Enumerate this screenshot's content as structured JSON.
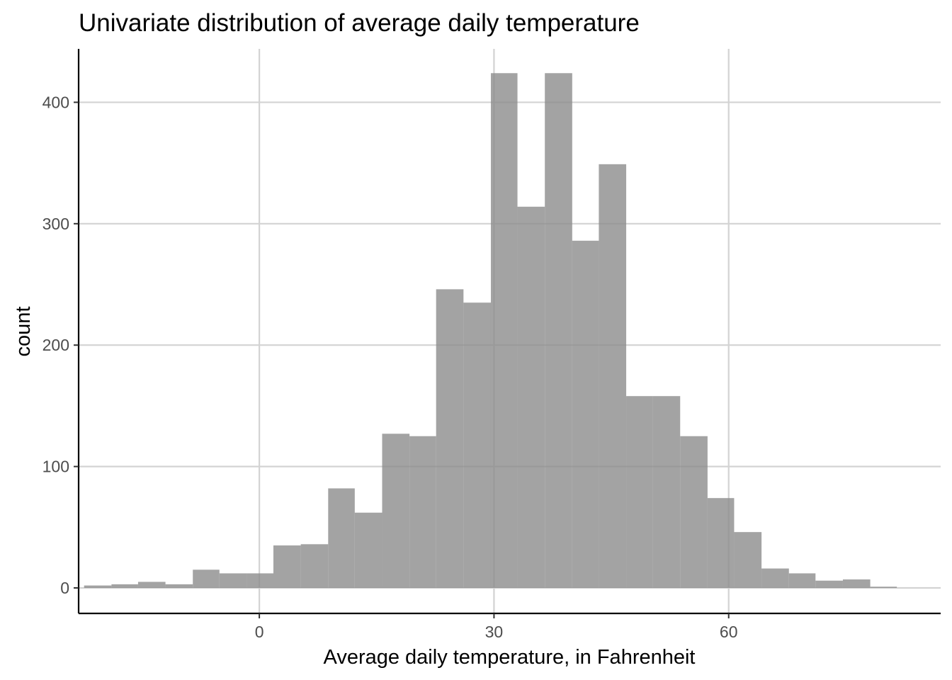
{
  "chart_data": {
    "type": "bar",
    "subtype": "histogram",
    "title": "Univariate distribution of average daily temperature",
    "xlabel": "Average daily temperature, in Fahrenheit",
    "ylabel": "count",
    "xlim": [
      -23.1,
      87.1
    ],
    "ylim": [
      -21,
      444
    ],
    "x_ticks": [
      0,
      30,
      60
    ],
    "y_ticks": [
      0,
      100,
      200,
      300,
      400
    ],
    "grid": true,
    "bar_color": "#a3a3a3",
    "bins": [
      {
        "x0": -22.4,
        "x1": -18.9,
        "count": 2
      },
      {
        "x0": -18.9,
        "x1": -15.5,
        "count": 3
      },
      {
        "x0": -15.5,
        "x1": -12.0,
        "count": 5
      },
      {
        "x0": -12.0,
        "x1": -8.5,
        "count": 3
      },
      {
        "x0": -8.5,
        "x1": -5.1,
        "count": 15
      },
      {
        "x0": -5.1,
        "x1": -1.6,
        "count": 12
      },
      {
        "x0": -1.6,
        "x1": 1.8,
        "count": 12
      },
      {
        "x0": 1.8,
        "x1": 5.3,
        "count": 35
      },
      {
        "x0": 5.3,
        "x1": 8.8,
        "count": 36
      },
      {
        "x0": 8.8,
        "x1": 12.2,
        "count": 82
      },
      {
        "x0": 12.2,
        "x1": 15.7,
        "count": 62
      },
      {
        "x0": 15.7,
        "x1": 19.2,
        "count": 127
      },
      {
        "x0": 19.2,
        "x1": 22.6,
        "count": 125
      },
      {
        "x0": 22.6,
        "x1": 26.1,
        "count": 246
      },
      {
        "x0": 26.1,
        "x1": 29.6,
        "count": 235
      },
      {
        "x0": 29.6,
        "x1": 33.0,
        "count": 424
      },
      {
        "x0": 33.0,
        "x1": 36.5,
        "count": 314
      },
      {
        "x0": 36.5,
        "x1": 40.0,
        "count": 424
      },
      {
        "x0": 40.0,
        "x1": 43.4,
        "count": 286
      },
      {
        "x0": 43.4,
        "x1": 46.9,
        "count": 349
      },
      {
        "x0": 46.9,
        "x1": 50.3,
        "count": 158
      },
      {
        "x0": 50.3,
        "x1": 53.8,
        "count": 158
      },
      {
        "x0": 53.8,
        "x1": 57.3,
        "count": 125
      },
      {
        "x0": 57.3,
        "x1": 60.7,
        "count": 74
      },
      {
        "x0": 60.7,
        "x1": 64.2,
        "count": 46
      },
      {
        "x0": 64.2,
        "x1": 67.7,
        "count": 16
      },
      {
        "x0": 67.7,
        "x1": 71.1,
        "count": 12
      },
      {
        "x0": 71.1,
        "x1": 74.6,
        "count": 6
      },
      {
        "x0": 74.6,
        "x1": 78.1,
        "count": 7
      },
      {
        "x0": 78.1,
        "x1": 81.5,
        "count": 1
      }
    ]
  }
}
